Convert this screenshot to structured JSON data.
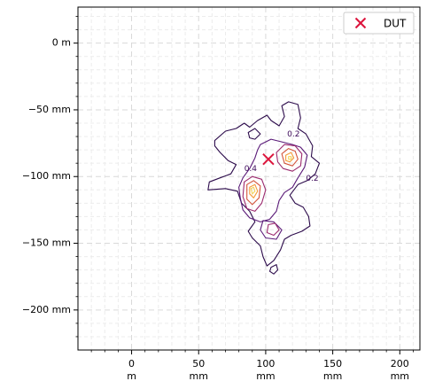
{
  "chart_data": {
    "type": "contour",
    "title": "",
    "xlabel": "",
    "ylabel": "",
    "xlim": [
      -40,
      215
    ],
    "ylim": [
      -230,
      27
    ],
    "x_ticks": [
      {
        "value": 0,
        "line1": "0",
        "line2": "m"
      },
      {
        "value": 50,
        "line1": "50",
        "line2": "mm"
      },
      {
        "value": 100,
        "line1": "100",
        "line2": "mm"
      },
      {
        "value": 150,
        "line1": "150",
        "line2": "mm"
      },
      {
        "value": 200,
        "line1": "200",
        "line2": "mm"
      }
    ],
    "y_ticks": [
      {
        "value": 0,
        "label": "0 m"
      },
      {
        "value": -50,
        "label": "−50 mm"
      },
      {
        "value": -100,
        "label": "−100 mm"
      },
      {
        "value": -150,
        "label": "−150 mm"
      },
      {
        "value": -200,
        "label": "−200 mm"
      }
    ],
    "grid": true,
    "legend": {
      "placement": "top-right",
      "entries": [
        {
          "label": "DUT",
          "marker": "x",
          "color": "#dc143c"
        }
      ]
    },
    "marker_point": {
      "label": "DUT",
      "x": 102,
      "y": -87
    },
    "contour_labels": [
      {
        "text": "0.2",
        "x": 116,
        "y": -70
      },
      {
        "text": "0.2",
        "x": 130,
        "y": -103
      },
      {
        "text": "0.4",
        "x": 84,
        "y": -96
      }
    ],
    "contours": [
      {
        "level": 0.1,
        "color": "#2c0b4b",
        "points": [
          [
            62,
            -73
          ],
          [
            70,
            -66
          ],
          [
            78,
            -64
          ],
          [
            84,
            -60
          ],
          [
            88,
            -63
          ],
          [
            94,
            -58
          ],
          [
            101,
            -54
          ],
          [
            104,
            -58
          ],
          [
            110,
            -62
          ],
          [
            114,
            -55
          ],
          [
            112,
            -47
          ],
          [
            117,
            -44
          ],
          [
            124,
            -46
          ],
          [
            126,
            -56
          ],
          [
            124,
            -64
          ],
          [
            130,
            -68
          ],
          [
            135,
            -77
          ],
          [
            134,
            -85
          ],
          [
            140,
            -90
          ],
          [
            137,
            -98
          ],
          [
            131,
            -103
          ],
          [
            124,
            -106
          ],
          [
            118,
            -114
          ],
          [
            122,
            -120
          ],
          [
            128,
            -123
          ],
          [
            132,
            -130
          ],
          [
            133,
            -137
          ],
          [
            127,
            -141
          ],
          [
            119,
            -144
          ],
          [
            114,
            -147
          ],
          [
            111,
            -155
          ],
          [
            106,
            -163
          ],
          [
            101,
            -167
          ],
          [
            98,
            -160
          ],
          [
            96,
            -152
          ],
          [
            90,
            -146
          ],
          [
            87,
            -141
          ],
          [
            92,
            -134
          ],
          [
            88,
            -126
          ],
          [
            82,
            -120
          ],
          [
            79,
            -111
          ],
          [
            70,
            -109
          ],
          [
            57,
            -110
          ],
          [
            58,
            -104
          ],
          [
            66,
            -101
          ],
          [
            74,
            -98
          ],
          [
            78,
            -91
          ],
          [
            72,
            -88
          ],
          [
            66,
            -82
          ],
          [
            62,
            -77
          ]
        ]
      },
      {
        "level": 0.1,
        "color": "#2c0b4b",
        "points": [
          [
            104,
            -168
          ],
          [
            108,
            -166
          ],
          [
            109,
            -170
          ],
          [
            106,
            -173
          ],
          [
            103,
            -171
          ]
        ]
      },
      {
        "level": 0.1,
        "color": "#2c0b4b",
        "points": [
          [
            87,
            -67
          ],
          [
            92,
            -64
          ],
          [
            96,
            -68
          ],
          [
            92,
            -72
          ],
          [
            88,
            -71
          ]
        ]
      },
      {
        "level": 0.2,
        "color": "#5a1a78",
        "points": [
          [
            96,
            -76
          ],
          [
            104,
            -72
          ],
          [
            112,
            -74
          ],
          [
            120,
            -76
          ],
          [
            126,
            -78
          ],
          [
            131,
            -84
          ],
          [
            129,
            -93
          ],
          [
            124,
            -101
          ],
          [
            120,
            -108
          ],
          [
            114,
            -112
          ],
          [
            110,
            -118
          ],
          [
            108,
            -126
          ],
          [
            103,
            -132
          ],
          [
            96,
            -134
          ],
          [
            88,
            -131
          ],
          [
            83,
            -125
          ],
          [
            81,
            -116
          ],
          [
            80,
            -108
          ],
          [
            83,
            -101
          ],
          [
            88,
            -94
          ],
          [
            92,
            -86
          ],
          [
            94,
            -80
          ]
        ]
      },
      {
        "level": 0.2,
        "color": "#5a1a78",
        "points": [
          [
            98,
            -133
          ],
          [
            106,
            -134
          ],
          [
            112,
            -140
          ],
          [
            108,
            -147
          ],
          [
            100,
            -146
          ],
          [
            96,
            -140
          ]
        ]
      },
      {
        "level": 0.4,
        "color": "#9c2a6e",
        "points": [
          [
            108,
            -82
          ],
          [
            114,
            -76
          ],
          [
            122,
            -77
          ],
          [
            127,
            -83
          ],
          [
            126,
            -92
          ],
          [
            120,
            -96
          ],
          [
            113,
            -94
          ],
          [
            109,
            -89
          ]
        ]
      },
      {
        "level": 0.4,
        "color": "#9c2a6e",
        "points": [
          [
            84,
            -104
          ],
          [
            90,
            -100
          ],
          [
            97,
            -102
          ],
          [
            100,
            -110
          ],
          [
            97,
            -120
          ],
          [
            92,
            -126
          ],
          [
            86,
            -124
          ],
          [
            83,
            -115
          ]
        ]
      },
      {
        "level": 0.4,
        "color": "#9c2a6e",
        "points": [
          [
            102,
            -136
          ],
          [
            107,
            -135
          ],
          [
            110,
            -140
          ],
          [
            106,
            -144
          ],
          [
            101,
            -142
          ]
        ]
      },
      {
        "level": 0.6,
        "color": "#d3543b",
        "points": [
          [
            112,
            -83
          ],
          [
            117,
            -79
          ],
          [
            122,
            -81
          ],
          [
            124,
            -87
          ],
          [
            120,
            -92
          ],
          [
            114,
            -90
          ]
        ]
      },
      {
        "level": 0.6,
        "color": "#d3543b",
        "points": [
          [
            86,
            -106
          ],
          [
            91,
            -103
          ],
          [
            96,
            -107
          ],
          [
            95,
            -116
          ],
          [
            90,
            -121
          ],
          [
            86,
            -117
          ]
        ]
      },
      {
        "level": 0.8,
        "color": "#f59d3b",
        "points": [
          [
            115,
            -84
          ],
          [
            119,
            -82
          ],
          [
            121,
            -86
          ],
          [
            118,
            -89
          ],
          [
            115,
            -88
          ]
        ]
      },
      {
        "level": 0.8,
        "color": "#f59d3b",
        "points": [
          [
            88,
            -108
          ],
          [
            92,
            -106
          ],
          [
            94,
            -111
          ],
          [
            91,
            -116
          ],
          [
            88,
            -113
          ]
        ]
      },
      {
        "level": 0.9,
        "color": "#f3d65e",
        "points": [
          [
            117,
            -85
          ],
          [
            119,
            -85
          ],
          [
            119,
            -87
          ],
          [
            117,
            -87
          ]
        ]
      },
      {
        "level": 0.9,
        "color": "#f3d65e",
        "points": [
          [
            89,
            -109
          ],
          [
            91,
            -108
          ],
          [
            92,
            -111
          ],
          [
            90,
            -113
          ]
        ]
      }
    ]
  }
}
